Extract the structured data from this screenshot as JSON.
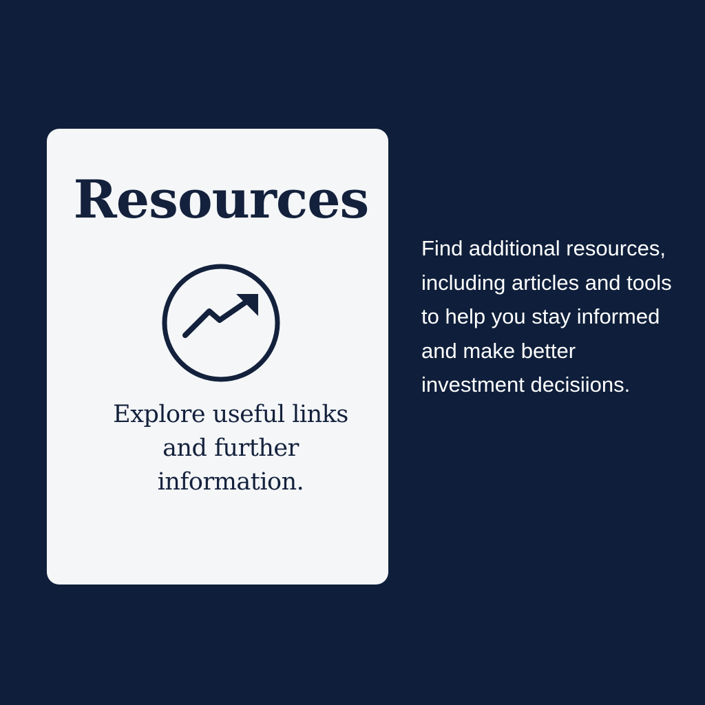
{
  "colors": {
    "background": "#0f1f3b",
    "card": "#f4f6f8",
    "ink": "#14213c",
    "side_text": "#ffffff"
  },
  "card": {
    "title": "Resources",
    "icon": "trending-up-icon",
    "description": "Explore useful links and further information."
  },
  "side": {
    "text": "Find additional resources, including articles and tools to help you stay informed and make better investment decisiions."
  }
}
